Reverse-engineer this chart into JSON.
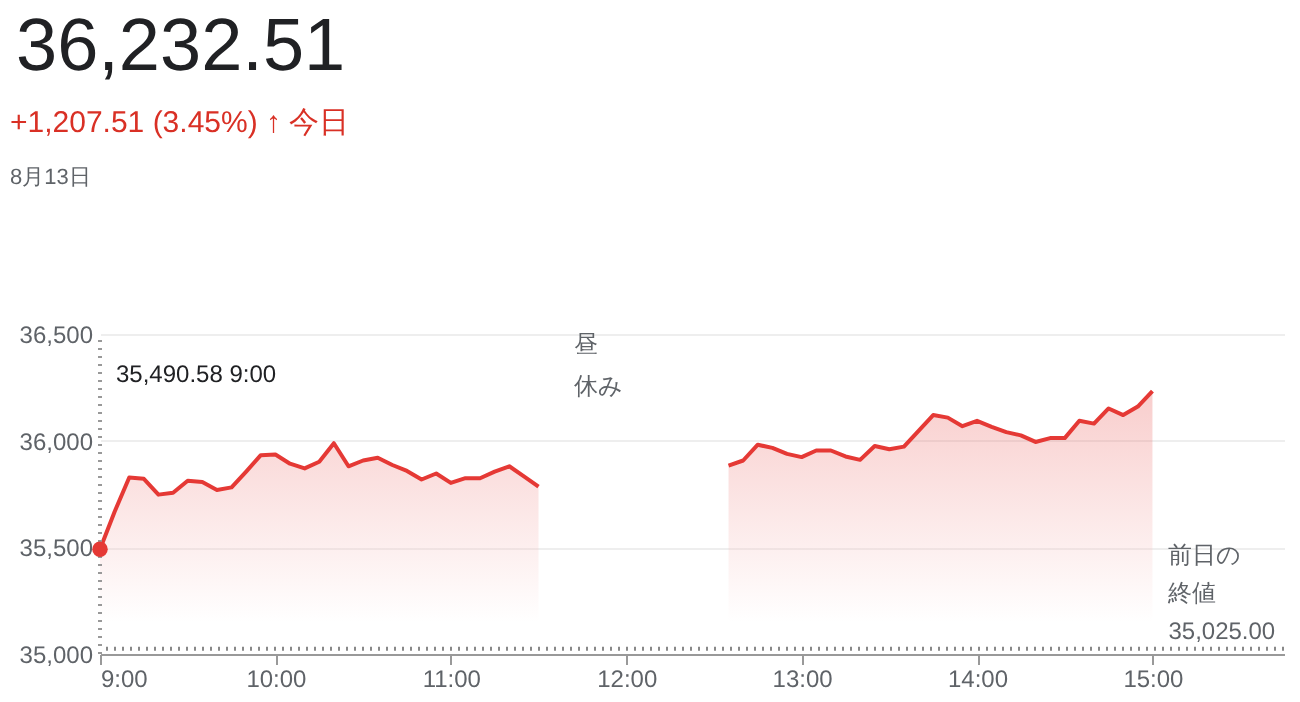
{
  "chart_data": {
    "type": "area",
    "title": "36,232.51",
    "subtitle": "+1,207.51 (3.45%) ↑ 今日",
    "annotations": [
      "8月13日",
      "昼休み",
      "35,490.58 9:00"
    ],
    "x": [
      9,
      9.0833,
      9.1667,
      9.25,
      9.3333,
      9.4167,
      9.5,
      9.5833,
      9.6667,
      9.75,
      9.8333,
      9.9167,
      10,
      10.0833,
      10.1667,
      10.25,
      10.3333,
      10.4167,
      10.5,
      10.5833,
      10.6667,
      10.75,
      10.8333,
      10.9167,
      11,
      11.0833,
      11.1667,
      11.25,
      11.3333,
      11.4167,
      11.5,
      12,
      12.5833,
      12.6667,
      12.75,
      12.8333,
      12.9167,
      13,
      13.0833,
      13.1667,
      13.25,
      13.3333,
      13.4167,
      13.5,
      13.5833,
      13.6667,
      13.75,
      13.8333,
      13.9167,
      14,
      14.0833,
      14.1667,
      14.25,
      14.3333,
      14.4167,
      14.5,
      14.5833,
      14.6667,
      14.75,
      14.8333,
      14.9167,
      15
    ],
    "series": [
      {
        "color": "#e53935",
        "values": [
          35490.58,
          35667,
          35827,
          35821,
          35747,
          35756,
          35812,
          35806,
          35769,
          35781,
          35855,
          35932,
          35935,
          35892,
          35870,
          35901,
          35988,
          35880,
          35907,
          35920,
          35886,
          35858,
          35818,
          35846,
          35802,
          35824,
          35824,
          35855,
          35880,
          35833,
          35784,
          null,
          35883,
          35907,
          35981,
          35966,
          35938,
          35923,
          35954,
          35954,
          35926,
          35910,
          35975,
          35960,
          35972,
          36046,
          36120,
          36108,
          36068,
          36093,
          36065,
          36040,
          36025,
          35994,
          36012,
          36012,
          36093,
          36080,
          36151,
          36120,
          36160,
          36232.51
        ]
      }
    ],
    "xlim": [
      9,
      15.75
    ],
    "xticks": [
      {
        "value": 9,
        "label": "9:00"
      },
      {
        "value": 10,
        "label": "10:00"
      },
      {
        "value": 11,
        "label": "11:00"
      },
      {
        "value": 12,
        "label": "12:00"
      },
      {
        "value": 13,
        "label": "13:00"
      },
      {
        "value": 14,
        "label": "14:00"
      },
      {
        "value": 15,
        "label": "15:00"
      }
    ],
    "ylim": [
      35000,
      36500
    ],
    "yticks": [
      {
        "value": 35000,
        "label": "35,000"
      },
      {
        "value": 35500,
        "label": "35,500"
      },
      {
        "value": 36000,
        "label": "36,000"
      },
      {
        "value": 36500,
        "label": "36,500"
      }
    ],
    "ref_lines": [
      {
        "axis": "y",
        "value": 35025,
        "label": "前日の終値 35,025.00",
        "line_style": "dotted",
        "color": "#888888"
      }
    ],
    "grid": "y",
    "marker": "none",
    "line_style": "solid"
  }
}
